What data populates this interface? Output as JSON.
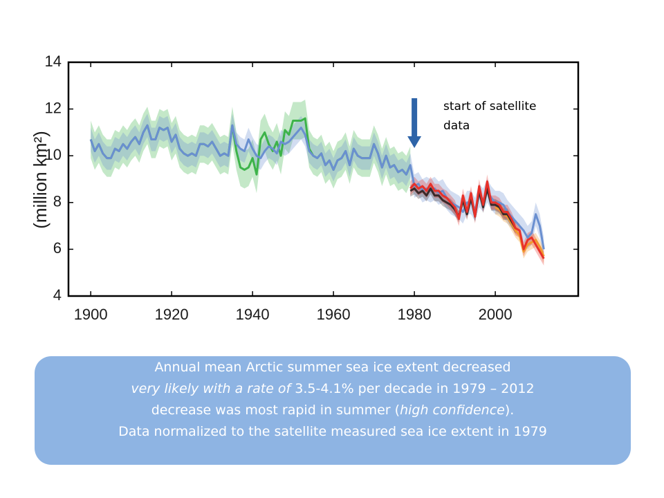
{
  "chart_data": {
    "type": "line",
    "ylabel": "(million km²)",
    "xlim": [
      1894.5,
      2020.5
    ],
    "ylim": [
      4,
      14
    ],
    "xticks": [
      1900,
      1920,
      1940,
      1960,
      1980,
      2000
    ],
    "yticks": [
      4,
      6,
      8,
      10,
      12,
      14
    ],
    "x": [
      1900,
      1901,
      1902,
      1903,
      1904,
      1905,
      1906,
      1907,
      1908,
      1909,
      1910,
      1911,
      1912,
      1913,
      1914,
      1915,
      1916,
      1917,
      1918,
      1919,
      1920,
      1921,
      1922,
      1923,
      1924,
      1925,
      1926,
      1927,
      1928,
      1929,
      1930,
      1931,
      1932,
      1933,
      1934,
      1935,
      1936,
      1937,
      1938,
      1939,
      1940,
      1941,
      1942,
      1943,
      1944,
      1945,
      1946,
      1947,
      1948,
      1949,
      1950,
      1951,
      1952,
      1953,
      1954,
      1955,
      1956,
      1957,
      1958,
      1959,
      1960,
      1961,
      1962,
      1963,
      1964,
      1965,
      1966,
      1967,
      1968,
      1969,
      1970,
      1971,
      1972,
      1973,
      1974,
      1975,
      1976,
      1977,
      1978,
      1979,
      1980,
      1981,
      1982,
      1983,
      1984,
      1985,
      1986,
      1987,
      1988,
      1989,
      1990,
      1991,
      1992,
      1993,
      1994,
      1995,
      1996,
      1997,
      1998,
      1999,
      2000,
      2001,
      2002,
      2003,
      2004,
      2005,
      2006,
      2007,
      2008,
      2009,
      2010,
      2011,
      2012
    ],
    "series": [
      {
        "color": "#3db34a",
        "uncertainty": 0.8,
        "values": [
          10.7,
          10.2,
          10.5,
          10.1,
          9.9,
          9.9,
          10.3,
          10.2,
          10.5,
          10.3,
          10.6,
          10.8,
          10.5,
          11.0,
          11.3,
          10.7,
          10.7,
          11.2,
          11.1,
          11.2,
          10.6,
          10.9,
          10.3,
          10.1,
          10.0,
          10.1,
          10.0,
          10.5,
          10.5,
          10.4,
          10.6,
          10.3,
          10.0,
          10.1,
          10.0,
          11.3,
          10.2,
          9.5,
          9.4,
          9.5,
          9.9,
          9.2,
          10.7,
          11.0,
          10.5,
          10.2,
          10.6,
          10.0,
          11.1,
          10.9,
          11.5,
          11.5,
          11.5,
          11.6,
          10.3,
          10.0,
          9.9,
          10.1,
          9.6,
          9.8,
          9.4,
          9.8,
          9.9,
          10.2,
          9.6,
          10.3,
          10.0,
          9.9,
          9.9,
          9.9,
          10.5,
          10.1,
          9.5,
          10.0,
          9.5,
          9.6,
          9.3,
          9.4,
          9.2,
          9.6,
          null,
          null,
          null,
          null,
          null,
          null,
          null,
          null,
          null,
          null,
          null,
          null,
          null,
          null,
          null,
          null,
          null,
          null,
          null,
          null,
          null,
          null,
          null,
          null,
          null,
          null,
          null,
          null,
          null,
          null,
          null,
          null,
          null
        ]
      },
      {
        "color": "#6a8fd0",
        "uncertainty": 0.5,
        "values": [
          10.7,
          10.2,
          10.5,
          10.1,
          9.9,
          9.9,
          10.3,
          10.2,
          10.5,
          10.3,
          10.6,
          10.8,
          10.5,
          11.0,
          11.3,
          10.7,
          10.7,
          11.2,
          11.1,
          11.2,
          10.6,
          10.9,
          10.3,
          10.1,
          10.0,
          10.1,
          10.0,
          10.5,
          10.5,
          10.4,
          10.6,
          10.3,
          10.0,
          10.1,
          10.0,
          11.3,
          10.5,
          10.3,
          10.2,
          10.7,
          10.3,
          10.0,
          9.9,
          10.2,
          10.4,
          10.3,
          10.1,
          10.6,
          10.5,
          10.6,
          10.8,
          11.0,
          11.2,
          10.9,
          10.2,
          10.0,
          9.9,
          10.1,
          9.6,
          9.8,
          9.4,
          9.8,
          9.9,
          10.2,
          9.6,
          10.3,
          10.0,
          9.9,
          9.9,
          9.9,
          10.5,
          10.1,
          9.5,
          10.0,
          9.5,
          9.6,
          9.3,
          9.4,
          9.2,
          9.6,
          8.7,
          8.8,
          8.5,
          8.6,
          8.5,
          8.6,
          8.4,
          8.5,
          8.2,
          8.0,
          7.9,
          7.8,
          7.6,
          8.0,
          8.0,
          7.7,
          8.3,
          8.1,
          8.5,
          8.2,
          8.0,
          8.0,
          7.9,
          7.6,
          7.4,
          7.2,
          7.0,
          6.8,
          6.5,
          6.7,
          7.5,
          7.0,
          6.0
        ]
      },
      {
        "color": "#f29a2e",
        "uncertainty": 0.3,
        "values": [
          null,
          null,
          null,
          null,
          null,
          null,
          null,
          null,
          null,
          null,
          null,
          null,
          null,
          null,
          null,
          null,
          null,
          null,
          null,
          null,
          null,
          null,
          null,
          null,
          null,
          null,
          null,
          null,
          null,
          null,
          null,
          null,
          null,
          null,
          null,
          null,
          null,
          null,
          null,
          null,
          null,
          null,
          null,
          null,
          null,
          null,
          null,
          null,
          null,
          null,
          null,
          null,
          null,
          null,
          null,
          null,
          null,
          null,
          null,
          null,
          null,
          null,
          null,
          null,
          null,
          null,
          null,
          null,
          null,
          null,
          null,
          null,
          null,
          null,
          null,
          null,
          null,
          null,
          null,
          null,
          null,
          null,
          null,
          null,
          null,
          null,
          null,
          null,
          null,
          null,
          null,
          null,
          null,
          null,
          null,
          null,
          null,
          null,
          null,
          null,
          7.8,
          7.7,
          7.5,
          7.4,
          7.1,
          6.8,
          6.6,
          5.9,
          6.2,
          6.3,
          6.4,
          6.1,
          5.7
        ]
      },
      {
        "color": "#3a2a2a",
        "uncertainty": 0.25,
        "values": [
          null,
          null,
          null,
          null,
          null,
          null,
          null,
          null,
          null,
          null,
          null,
          null,
          null,
          null,
          null,
          null,
          null,
          null,
          null,
          null,
          null,
          null,
          null,
          null,
          null,
          null,
          null,
          null,
          null,
          null,
          null,
          null,
          null,
          null,
          null,
          null,
          null,
          null,
          null,
          null,
          null,
          null,
          null,
          null,
          null,
          null,
          null,
          null,
          null,
          null,
          null,
          null,
          null,
          null,
          null,
          null,
          null,
          null,
          null,
          null,
          null,
          null,
          null,
          null,
          null,
          null,
          null,
          null,
          null,
          null,
          null,
          null,
          null,
          null,
          null,
          null,
          null,
          null,
          null,
          8.5,
          8.6,
          8.4,
          8.5,
          8.3,
          8.6,
          8.3,
          8.3,
          8.1,
          8.0,
          7.9,
          7.7,
          7.4,
          8.1,
          7.5,
          8.2,
          7.4,
          8.5,
          7.8,
          8.6,
          7.9,
          7.9,
          7.8,
          7.5,
          7.5,
          7.2,
          6.9,
          null,
          null,
          null,
          null,
          null,
          null,
          null
        ]
      },
      {
        "color": "#e8312a",
        "uncertainty": 0.3,
        "values": [
          null,
          null,
          null,
          null,
          null,
          null,
          null,
          null,
          null,
          null,
          null,
          null,
          null,
          null,
          null,
          null,
          null,
          null,
          null,
          null,
          null,
          null,
          null,
          null,
          null,
          null,
          null,
          null,
          null,
          null,
          null,
          null,
          null,
          null,
          null,
          null,
          null,
          null,
          null,
          null,
          null,
          null,
          null,
          null,
          null,
          null,
          null,
          null,
          null,
          null,
          null,
          null,
          null,
          null,
          null,
          null,
          null,
          null,
          null,
          null,
          null,
          null,
          null,
          null,
          null,
          null,
          null,
          null,
          null,
          null,
          null,
          null,
          null,
          null,
          null,
          null,
          null,
          null,
          null,
          8.6,
          8.8,
          8.6,
          8.7,
          8.5,
          8.8,
          8.5,
          8.5,
          8.3,
          8.2,
          8.0,
          7.8,
          7.3,
          8.3,
          7.6,
          8.4,
          7.4,
          8.7,
          7.9,
          8.9,
          8.0,
          8.0,
          7.9,
          7.6,
          7.6,
          7.3,
          6.9,
          6.8,
          6.0,
          6.4,
          6.5,
          6.2,
          5.9,
          5.6
        ]
      }
    ],
    "annotation": {
      "lines": [
        "start of satellite",
        "data"
      ],
      "x": 1980,
      "color": "#2e64a8"
    }
  },
  "caption": {
    "lines": [
      [
        {
          "text": "Annual mean Arctic summer sea ice extent decreased",
          "italic": false
        }
      ],
      [
        {
          "text": "very likely with a rate of ",
          "italic": true
        },
        {
          "text": " 3.5-4.1% per decade in 1979 – 2012",
          "italic": false
        }
      ],
      [
        {
          "text": "decrease was most rapid in summer (",
          "italic": false
        },
        {
          "text": "high confidence",
          "italic": true
        },
        {
          "text": ").",
          "italic": false
        }
      ],
      [
        {
          "text": "Data normalized to the satellite measured sea ice extent in 1979",
          "italic": false
        }
      ]
    ]
  }
}
